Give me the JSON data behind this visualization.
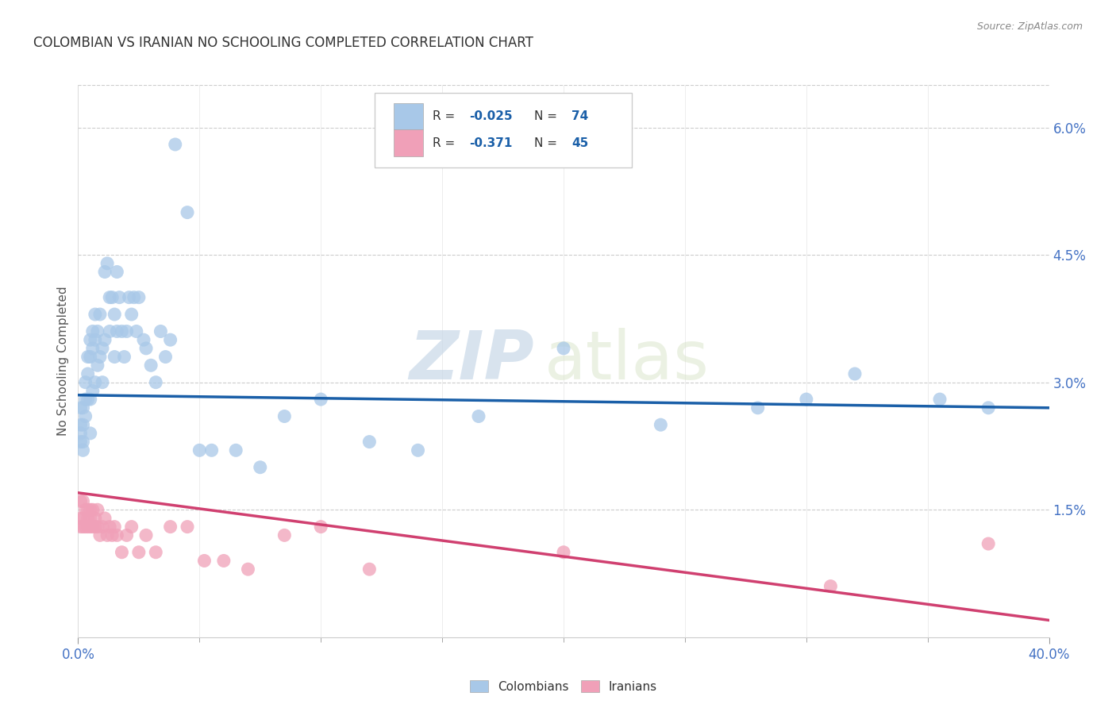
{
  "title": "COLOMBIAN VS IRANIAN NO SCHOOLING COMPLETED CORRELATION CHART",
  "source": "Source: ZipAtlas.com",
  "ylabel": "No Schooling Completed",
  "xlim": [
    0.0,
    0.4
  ],
  "ylim": [
    0.0,
    0.065
  ],
  "yticks": [
    0.015,
    0.03,
    0.045,
    0.06
  ],
  "ytick_labels": [
    "1.5%",
    "3.0%",
    "4.5%",
    "6.0%"
  ],
  "xtick_labels_shown": [
    "0.0%",
    "40.0%"
  ],
  "xtick_positions_shown": [
    0.0,
    0.4
  ],
  "xtick_minor": [
    0.05,
    0.1,
    0.15,
    0.2,
    0.25,
    0.3,
    0.35
  ],
  "blue_R": "-0.025",
  "blue_N": "74",
  "pink_R": "-0.371",
  "pink_N": "45",
  "blue_color": "#A8C8E8",
  "pink_color": "#F0A0B8",
  "blue_line_color": "#1A5FA8",
  "pink_line_color": "#D04070",
  "watermark_zip": "ZIP",
  "watermark_atlas": "atlas",
  "watermark_color": "#D0DCE8",
  "legend_label_blue": "Colombians",
  "legend_label_pink": "Iranians",
  "colombian_x": [
    0.001,
    0.001,
    0.001,
    0.001,
    0.002,
    0.002,
    0.002,
    0.002,
    0.003,
    0.003,
    0.003,
    0.004,
    0.004,
    0.004,
    0.005,
    0.005,
    0.005,
    0.005,
    0.006,
    0.006,
    0.006,
    0.007,
    0.007,
    0.007,
    0.008,
    0.008,
    0.009,
    0.009,
    0.01,
    0.01,
    0.011,
    0.011,
    0.012,
    0.013,
    0.013,
    0.014,
    0.015,
    0.015,
    0.016,
    0.016,
    0.017,
    0.018,
    0.019,
    0.02,
    0.021,
    0.022,
    0.023,
    0.024,
    0.025,
    0.027,
    0.028,
    0.03,
    0.032,
    0.034,
    0.036,
    0.038,
    0.04,
    0.045,
    0.05,
    0.055,
    0.065,
    0.075,
    0.085,
    0.1,
    0.12,
    0.14,
    0.165,
    0.2,
    0.24,
    0.28,
    0.3,
    0.32,
    0.355,
    0.375
  ],
  "colombian_y": [
    0.027,
    0.025,
    0.024,
    0.023,
    0.027,
    0.025,
    0.023,
    0.022,
    0.03,
    0.028,
    0.026,
    0.033,
    0.031,
    0.028,
    0.035,
    0.033,
    0.028,
    0.024,
    0.036,
    0.034,
    0.029,
    0.038,
    0.035,
    0.03,
    0.036,
    0.032,
    0.038,
    0.033,
    0.034,
    0.03,
    0.043,
    0.035,
    0.044,
    0.04,
    0.036,
    0.04,
    0.038,
    0.033,
    0.043,
    0.036,
    0.04,
    0.036,
    0.033,
    0.036,
    0.04,
    0.038,
    0.04,
    0.036,
    0.04,
    0.035,
    0.034,
    0.032,
    0.03,
    0.036,
    0.033,
    0.035,
    0.058,
    0.05,
    0.022,
    0.022,
    0.022,
    0.02,
    0.026,
    0.028,
    0.023,
    0.022,
    0.026,
    0.034,
    0.025,
    0.027,
    0.028,
    0.031,
    0.028,
    0.027
  ],
  "iranian_x": [
    0.001,
    0.001,
    0.001,
    0.002,
    0.002,
    0.002,
    0.003,
    0.003,
    0.004,
    0.004,
    0.004,
    0.005,
    0.005,
    0.005,
    0.006,
    0.006,
    0.007,
    0.007,
    0.008,
    0.008,
    0.009,
    0.01,
    0.011,
    0.012,
    0.013,
    0.014,
    0.015,
    0.016,
    0.018,
    0.02,
    0.022,
    0.025,
    0.028,
    0.032,
    0.038,
    0.045,
    0.052,
    0.06,
    0.07,
    0.085,
    0.1,
    0.12,
    0.2,
    0.31,
    0.375
  ],
  "iranian_y": [
    0.016,
    0.014,
    0.013,
    0.016,
    0.014,
    0.013,
    0.015,
    0.013,
    0.015,
    0.014,
    0.013,
    0.015,
    0.014,
    0.013,
    0.015,
    0.013,
    0.014,
    0.013,
    0.015,
    0.013,
    0.012,
    0.013,
    0.014,
    0.012,
    0.013,
    0.012,
    0.013,
    0.012,
    0.01,
    0.012,
    0.013,
    0.01,
    0.012,
    0.01,
    0.013,
    0.013,
    0.009,
    0.009,
    0.008,
    0.012,
    0.013,
    0.008,
    0.01,
    0.006,
    0.011
  ],
  "background_color": "#FFFFFF",
  "grid_color": "#CCCCCC",
  "title_color": "#333333",
  "axis_label_color": "#555555",
  "tick_label_color": "#4472C4"
}
